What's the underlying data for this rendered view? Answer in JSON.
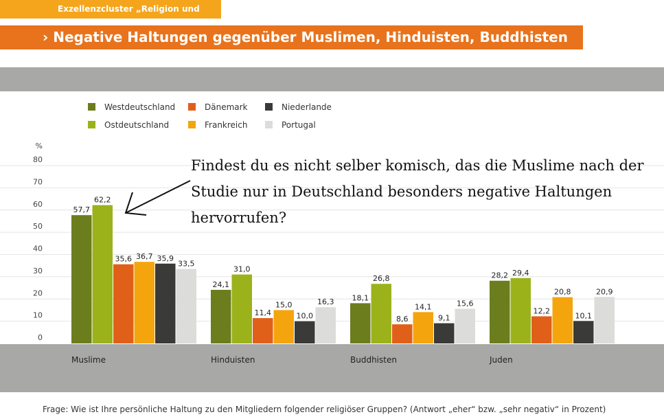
{
  "header": {
    "cluster_label": "Exzellenzcluster „Religion und Politik“",
    "title": "› Negative Haltungen gegenüber Muslimen, Hinduisten, Buddhisten und Juden"
  },
  "colors": {
    "orange_header": "#e8731c",
    "yellow_tag": "#f4a51c",
    "band_grey": "#a8a8a6"
  },
  "chart_data": {
    "type": "bar",
    "ylabel": "%",
    "ylim": [
      0,
      80
    ],
    "yticks": [
      0,
      10,
      20,
      30,
      40,
      50,
      60,
      70,
      80
    ],
    "grid": true,
    "legend_position": "top-left",
    "categories": [
      "Muslime",
      "Hinduisten",
      "Buddhisten",
      "Juden"
    ],
    "series": [
      {
        "name": "Westdeutschland",
        "color": "#6b7d1d",
        "values": [
          57.7,
          24.1,
          18.1,
          28.2
        ],
        "labels": [
          "57,7",
          "24,1",
          "18,1",
          "28,2"
        ]
      },
      {
        "name": "Ostdeutschland",
        "color": "#9cb21b",
        "values": [
          62.2,
          31.0,
          26.8,
          29.4
        ],
        "labels": [
          "62,2",
          "31,0",
          "26,8",
          "29,4"
        ]
      },
      {
        "name": "Dänemark",
        "color": "#e0601a",
        "values": [
          35.6,
          11.4,
          8.6,
          12.2
        ],
        "labels": [
          "35,6",
          "11,4",
          "8,6",
          "12,2"
        ]
      },
      {
        "name": "Frankreich",
        "color": "#f4a50e",
        "values": [
          36.7,
          15.0,
          14.1,
          20.8
        ],
        "labels": [
          "36,7",
          "15,0",
          "14,1",
          "20,8"
        ]
      },
      {
        "name": "Niederlande",
        "color": "#3a3a38",
        "values": [
          35.9,
          10.0,
          9.1,
          10.1
        ],
        "labels": [
          "35,9",
          "10,0",
          "9,1",
          "10,1"
        ]
      },
      {
        "name": "Portugal",
        "color": "#dcdcdb",
        "values": [
          33.5,
          16.3,
          15.6,
          20.9
        ],
        "labels": [
          "33,5",
          "16,3",
          "15,6",
          "20,9"
        ]
      }
    ]
  },
  "question": "Frage: Wie ist Ihre persönliche Haltung zu den Mitgliedern folgender religiöser Gruppen? (Antwort „eher“ bzw. „sehr negativ“ in Prozent)",
  "annotation": {
    "text": "Findest du es nicht selber komisch, das die Muslime nach der Studie nur in Deutschland besonders negative Haltungen hervorrufen?"
  }
}
